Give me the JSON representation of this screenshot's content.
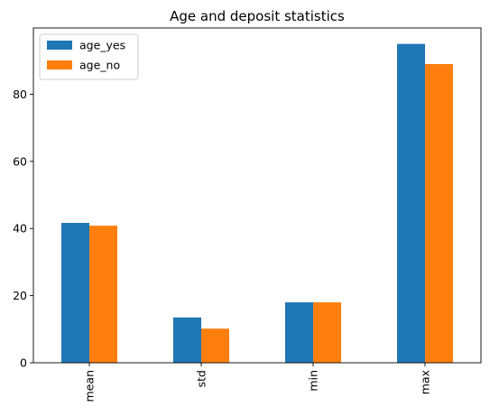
{
  "chart_data": {
    "type": "bar",
    "title": "Age and deposit statistics",
    "xlabel": "",
    "ylabel": "",
    "categories": [
      "mean",
      "std",
      "min",
      "max"
    ],
    "series": [
      {
        "name": "age_yes",
        "values": [
          41.67,
          13.5,
          18,
          95
        ],
        "color": "#1f77b4"
      },
      {
        "name": "age_no",
        "values": [
          40.84,
          10.17,
          18,
          89
        ],
        "color": "#ff7f0e"
      }
    ],
    "ylim": [
      0,
      99.75
    ],
    "yticks": [
      0,
      20,
      40,
      60,
      80
    ],
    "grid": false,
    "legend_position": "top-left"
  }
}
